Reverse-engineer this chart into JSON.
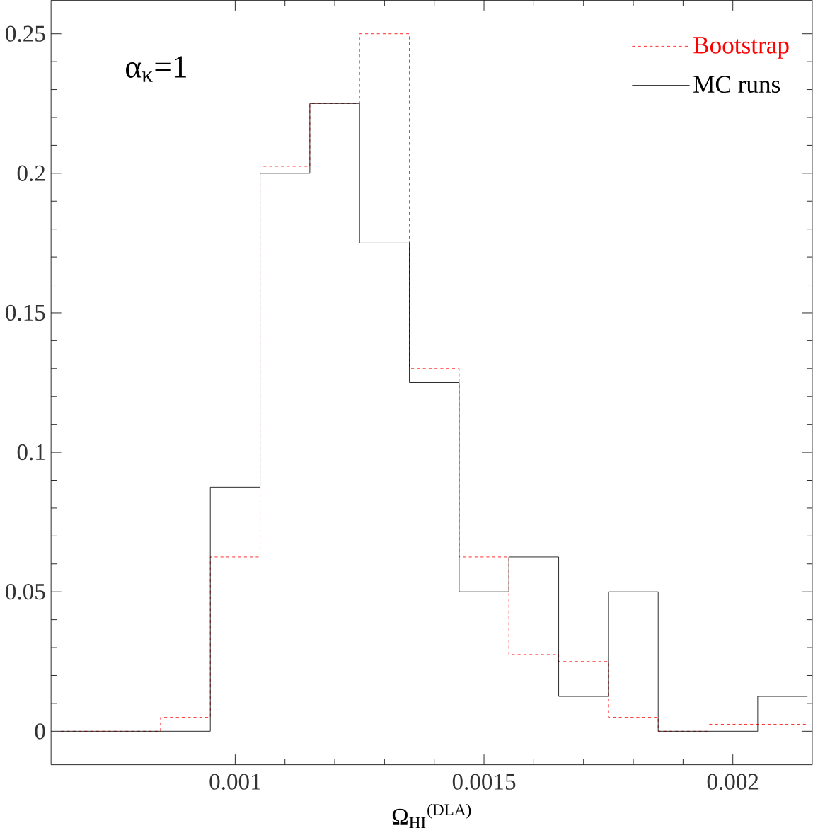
{
  "chart_data": {
    "type": "histogram",
    "xlabel": "Ω$_{HI}$$^{(DLA)}$",
    "annotations": [
      "α$_{κ}$=1"
    ],
    "bins": [
      0.00065,
      0.00075,
      0.00085,
      0.00095,
      0.00105,
      0.00115,
      0.00125,
      0.00135,
      0.00145,
      0.00155,
      0.00165,
      0.00175,
      0.00185,
      0.00195,
      0.00205,
      0.00215
    ],
    "series": [
      {
        "name": "Bootstrap",
        "color": "#ff0000",
        "line_style": "dotted",
        "values": [
          0,
          0,
          0.005,
          0.0625,
          0.2025,
          0.225,
          0.25,
          0.13,
          0.0625,
          0.0275,
          0.025,
          0.005,
          0,
          0.0025,
          0.0025
        ]
      },
      {
        "name": "MC runs",
        "color": "#000000",
        "line_style": "solid",
        "values": [
          0,
          0,
          0,
          0.0875,
          0.2,
          0.225,
          0.175,
          0.125,
          0.05,
          0.0625,
          0.0125,
          0.05,
          0,
          0,
          0.0125
        ]
      }
    ],
    "xlim": [
      0.00063,
      0.00216
    ],
    "ylim": [
      -0.012,
      0.262
    ],
    "xticks": [
      0.001,
      0.0015,
      0.002
    ],
    "yticks": [
      0,
      0.05,
      0.1,
      0.15,
      0.2,
      0.25
    ],
    "legend": "top right"
  }
}
